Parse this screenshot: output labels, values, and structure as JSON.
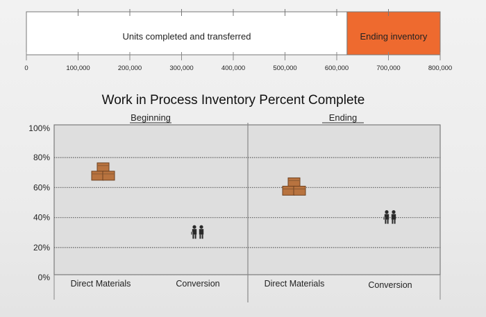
{
  "chart_data": [
    {
      "type": "bar",
      "orientation": "horizontal-stacked",
      "series": [
        {
          "name": "Units completed and transferred",
          "values": [
            620000
          ],
          "color": "#ffffff"
        },
        {
          "name": "Ending inventory",
          "values": [
            180000
          ],
          "color": "#ee6a2f"
        }
      ],
      "xlim": [
        0,
        800000
      ],
      "x_ticks": [
        "0",
        "100,000",
        "200,000",
        "300,000",
        "400,000",
        "500,000",
        "600,000",
        "700,000",
        "800,000"
      ],
      "x_tick_values": [
        0,
        100000,
        200000,
        300000,
        400000,
        500000,
        600000,
        700000,
        800000
      ]
    },
    {
      "type": "scatter",
      "title": "Work in Process Inventory Percent Complete",
      "panels": [
        {
          "label": "Beginning",
          "categories": [
            "Direct Materials",
            "Conversion"
          ]
        },
        {
          "label": "Ending",
          "categories": [
            "Direct Materials",
            "Conversion"
          ]
        }
      ],
      "ylim": [
        0,
        100
      ],
      "y_ticks": [
        "0%",
        "20%",
        "40%",
        "60%",
        "80%",
        "100%"
      ],
      "y_tick_values": [
        0,
        20,
        40,
        60,
        80,
        100
      ],
      "grid": true,
      "markers": [
        {
          "panel": 0,
          "category": "Direct Materials",
          "y": 70,
          "icon": "boxes-icon"
        },
        {
          "panel": 0,
          "category": "Conversion",
          "y": 30,
          "icon": "workers-icon"
        },
        {
          "panel": 1,
          "category": "Direct Materials",
          "y": 60,
          "icon": "boxes-icon"
        },
        {
          "panel": 1,
          "category": "Conversion",
          "y": 40,
          "icon": "workers-icon"
        }
      ],
      "colors": {
        "plot_bg": "#dedede",
        "marker_box": "#b8733f",
        "marker_people": "#2a2a2a"
      }
    }
  ]
}
